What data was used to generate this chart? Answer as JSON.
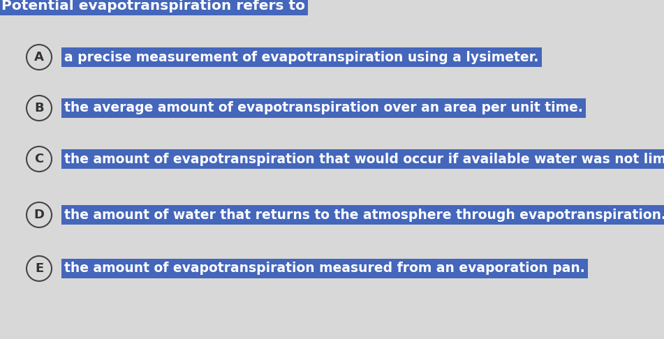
{
  "background_color": "#d8d8d8",
  "highlight_color": "#4466bb",
  "text_color": "#ffffff",
  "circle_bg": "#d8d8d8",
  "circle_border": "#444444",
  "title": "Potential evapotranspiration refers to",
  "options": [
    {
      "label": "A",
      "text": "a precise measurement of evapotranspiration using a lysimeter."
    },
    {
      "label": "B",
      "text": "the average amount of evapotranspiration over an area per unit time."
    },
    {
      "label": "C",
      "text": "the amount of evapotranspiration that would occur if available water was not limited."
    },
    {
      "label": "D",
      "text": "the amount of water that returns to the atmosphere through evapotranspiration."
    },
    {
      "label": "E",
      "text": "the amount of evapotranspiration measured from an evaporation pan."
    }
  ],
  "title_fontsize": 14.5,
  "option_fontsize": 13.5,
  "figsize": [
    9.51,
    4.86
  ],
  "dpi": 100
}
